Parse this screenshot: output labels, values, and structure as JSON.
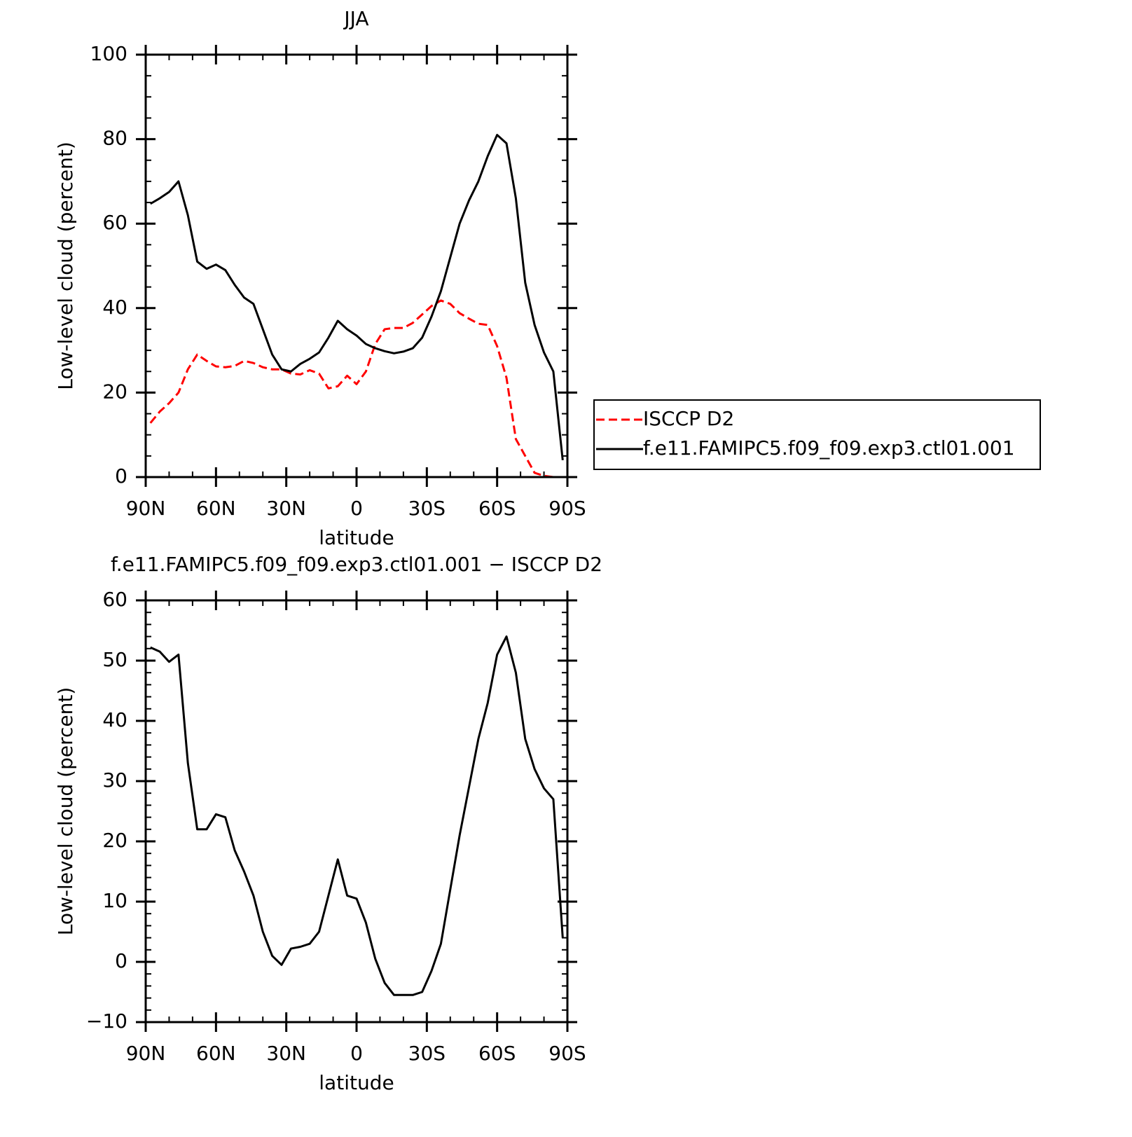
{
  "chart_data": [
    {
      "type": "line",
      "title": "JJA",
      "x_label": "latitude",
      "y_label": "Low-level cloud (percent)",
      "x": [
        88,
        84,
        80,
        76,
        72,
        68,
        64,
        60,
        56,
        52,
        48,
        44,
        40,
        36,
        32,
        28,
        24,
        20,
        16,
        12,
        8,
        4,
        0,
        -4,
        -8,
        -12,
        -16,
        -20,
        -24,
        -28,
        -32,
        -36,
        -40,
        -44,
        -48,
        -52,
        -56,
        -60,
        -64,
        -68,
        -72,
        -76,
        -80,
        -84,
        -88
      ],
      "series": [
        {
          "name": "ISCCP D2",
          "color": "#ff0000",
          "linestyle": "dashed",
          "values": [
            12.8,
            15.5,
            17.5,
            20,
            25.5,
            29,
            27.5,
            26.2,
            26,
            26.3,
            27.5,
            27,
            26,
            25.5,
            25.5,
            24.5,
            24.3,
            25.3,
            24.5,
            21,
            21.5,
            24,
            22,
            25,
            31.5,
            35,
            35.3,
            35.3,
            36.5,
            38.5,
            40.5,
            41.8,
            41,
            38.8,
            37.5,
            36.3,
            36,
            31,
            23.5,
            9,
            5,
            1,
            0.3,
            0,
            0
          ]
        },
        {
          "name": "f.e11.FAMIPC5.f09_f09.exp3.ctl01.001",
          "color": "#000000",
          "linestyle": "solid",
          "values": [
            64.7,
            66,
            67.5,
            70,
            62,
            51,
            49.3,
            50.3,
            49,
            45.5,
            42.5,
            41,
            35,
            29,
            25.5,
            25,
            26.8,
            28,
            29.5,
            33,
            37,
            35,
            33.5,
            31.5,
            30.5,
            29.8,
            29.3,
            29.7,
            30.5,
            33,
            38,
            44,
            52,
            60,
            65.5,
            70,
            76,
            81,
            79,
            66,
            46,
            36,
            29.5,
            25,
            4
          ]
        }
      ],
      "xlim": [
        90,
        -90
      ],
      "xticks": [
        {
          "value": 90,
          "label": "90N"
        },
        {
          "value": 60,
          "label": "60N"
        },
        {
          "value": 30,
          "label": "30N"
        },
        0,
        {
          "value": -30,
          "label": "30S"
        },
        {
          "value": -60,
          "label": "60S"
        },
        {
          "value": -90,
          "label": "90S"
        }
      ],
      "minor_xticks": [
        80,
        70,
        50,
        40,
        20,
        10,
        -10,
        -20,
        -40,
        -50,
        -70,
        -80
      ],
      "ylim": [
        0,
        100
      ],
      "yticks": [
        0,
        20,
        40,
        60,
        80,
        100
      ],
      "minor_yticks": [
        5,
        10,
        15,
        25,
        30,
        35,
        45,
        50,
        55,
        65,
        70,
        75,
        85,
        90,
        95
      ],
      "legend": "right"
    },
    {
      "type": "line",
      "title": "f.e11.FAMIPC5.f09_f09.exp3.ctl01.001 − ISCCP D2",
      "x_label": "latitude",
      "y_label": "Low-level cloud (percent)",
      "x": [
        88,
        84,
        80,
        76,
        72,
        68,
        64,
        60,
        56,
        52,
        48,
        44,
        40,
        36,
        32,
        28,
        24,
        20,
        16,
        12,
        8,
        4,
        0,
        -4,
        -8,
        -12,
        -16,
        -20,
        -24,
        -28,
        -32,
        -36,
        -40,
        -44,
        -48,
        -52,
        -56,
        -60,
        -64,
        -68,
        -72,
        -76,
        -80,
        -84,
        -88
      ],
      "series": [
        {
          "color": "#000000",
          "linestyle": "solid",
          "values": [
            52.2,
            51.5,
            49.8,
            51,
            33,
            22,
            22,
            24.5,
            24,
            18.5,
            15,
            11,
            5,
            1,
            -0.5,
            2.2,
            2.5,
            3,
            5,
            11,
            17,
            11,
            10.5,
            6.5,
            0.5,
            -3.5,
            -5.5,
            -5.5,
            -5.5,
            -5,
            -1.5,
            3,
            12,
            21,
            29,
            37,
            43,
            51,
            54,
            48,
            37,
            32,
            28.8,
            27,
            4
          ]
        }
      ],
      "xlim": [
        90,
        -90
      ],
      "xticks": [
        {
          "value": 90,
          "label": "90N"
        },
        {
          "value": 60,
          "label": "60N"
        },
        {
          "value": 30,
          "label": "30N"
        },
        0,
        {
          "value": -30,
          "label": "30S"
        },
        {
          "value": -60,
          "label": "60S"
        },
        {
          "value": -90,
          "label": "90S"
        }
      ],
      "minor_xticks": [
        80,
        70,
        50,
        40,
        20,
        10,
        -10,
        -20,
        -40,
        -50,
        -70,
        -80
      ],
      "ylim": [
        -10,
        60
      ],
      "yticks": [
        {
          "value": -10,
          "label": "−10"
        },
        0,
        10,
        20,
        30,
        40,
        50,
        60
      ],
      "minor_yticks": [
        -8,
        -6,
        -4,
        -2,
        2,
        4,
        6,
        8,
        12,
        14,
        16,
        18,
        22,
        24,
        26,
        28,
        32,
        34,
        36,
        38,
        42,
        44,
        46,
        48,
        52,
        54,
        56,
        58
      ]
    }
  ]
}
